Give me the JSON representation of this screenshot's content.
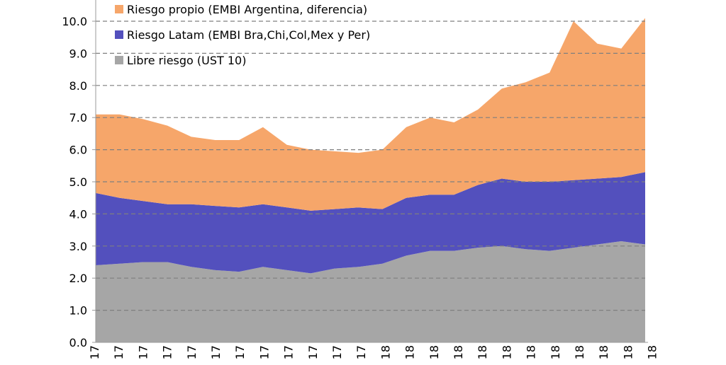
{
  "chart_data": {
    "type": "area",
    "stacked": true,
    "ylim": [
      0,
      10.6
    ],
    "yticks": [
      "0.0",
      "1.0",
      "2.0",
      "3.0",
      "4.0",
      "5.0",
      "6.0",
      "7.0",
      "8.0",
      "9.0",
      "10.0"
    ],
    "xtick_labels": [
      "17",
      "17",
      "17",
      "17",
      "17",
      "17",
      "17",
      "17",
      "17",
      "17",
      "17",
      "17",
      "18",
      "18",
      "18",
      "18",
      "18",
      "18",
      "18",
      "18",
      "18",
      "18",
      "18",
      "18"
    ],
    "grid": "horizontal-dashed",
    "legend_position": "top-left",
    "x": [
      0,
      1,
      2,
      3,
      4,
      5,
      6,
      7,
      8,
      9,
      10,
      11,
      12,
      13,
      14,
      15,
      16,
      17,
      18,
      19,
      20,
      21,
      22,
      23
    ],
    "series": [
      {
        "name": "Libre riesgo (UST 10)",
        "color": "#a6a6a6",
        "values": [
          2.4,
          2.45,
          2.5,
          2.5,
          2.35,
          2.25,
          2.2,
          2.35,
          2.25,
          2.15,
          2.3,
          2.35,
          2.45,
          2.7,
          2.85,
          2.85,
          2.95,
          3.0,
          2.9,
          2.85,
          2.95,
          3.05,
          3.15,
          3.05
        ]
      },
      {
        "name": "Riesgo Latam (EMBI Bra,Chi,Col,Mex y Per)",
        "color": "#5350bd",
        "values": [
          2.25,
          2.05,
          1.9,
          1.8,
          1.95,
          2.0,
          2.0,
          1.95,
          1.95,
          1.95,
          1.85,
          1.85,
          1.7,
          1.8,
          1.75,
          1.75,
          1.95,
          2.1,
          2.1,
          2.15,
          2.1,
          2.05,
          2.0,
          2.25
        ]
      },
      {
        "name": "Riesgo propio (EMBI Argentina, diferencia)",
        "color": "#f6a66a",
        "values": [
          2.45,
          2.6,
          2.55,
          2.45,
          2.1,
          2.05,
          2.1,
          2.4,
          1.95,
          1.9,
          1.8,
          1.7,
          1.85,
          2.2,
          2.4,
          2.25,
          2.35,
          2.8,
          3.1,
          3.4,
          4.95,
          4.2,
          4.0,
          4.8
        ]
      }
    ]
  }
}
